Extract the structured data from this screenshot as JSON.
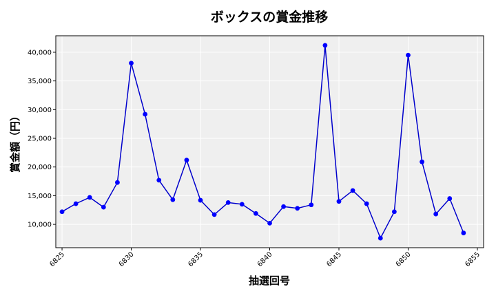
{
  "chart_data": {
    "type": "line",
    "title": "ボックスの賞金推移",
    "xlabel": "抽選回号",
    "ylabel": "賞金額（円）",
    "x": [
      6825,
      6826,
      6827,
      6828,
      6829,
      6830,
      6831,
      6832,
      6833,
      6834,
      6835,
      6836,
      6837,
      6838,
      6839,
      6840,
      6841,
      6842,
      6843,
      6844,
      6845,
      6846,
      6847,
      6848,
      6849,
      6850,
      6851,
      6852,
      6853,
      6854
    ],
    "values": [
      12200,
      13600,
      14700,
      13000,
      17300,
      38100,
      29200,
      17700,
      14300,
      21200,
      14200,
      11700,
      13800,
      13500,
      11900,
      10200,
      13100,
      12800,
      13400,
      41200,
      14000,
      15900,
      13600,
      7600,
      12200,
      39500,
      20900,
      11800,
      14500,
      8500
    ],
    "xlim": [
      6824.55,
      6855.45
    ],
    "ylim": [
      5930,
      42870
    ],
    "x_ticks": [
      "6825",
      "6830",
      "6835",
      "6840",
      "6845",
      "6850",
      "6855"
    ],
    "y_ticks": [
      "10,000",
      "15,000",
      "20,000",
      "25,000",
      "30,000",
      "35,000",
      "40,000"
    ],
    "grid": true,
    "colors": {
      "line": "#0000cc",
      "marker": "#0000ff",
      "plot_bg": "#efefef",
      "grid": "#ffffff"
    }
  }
}
